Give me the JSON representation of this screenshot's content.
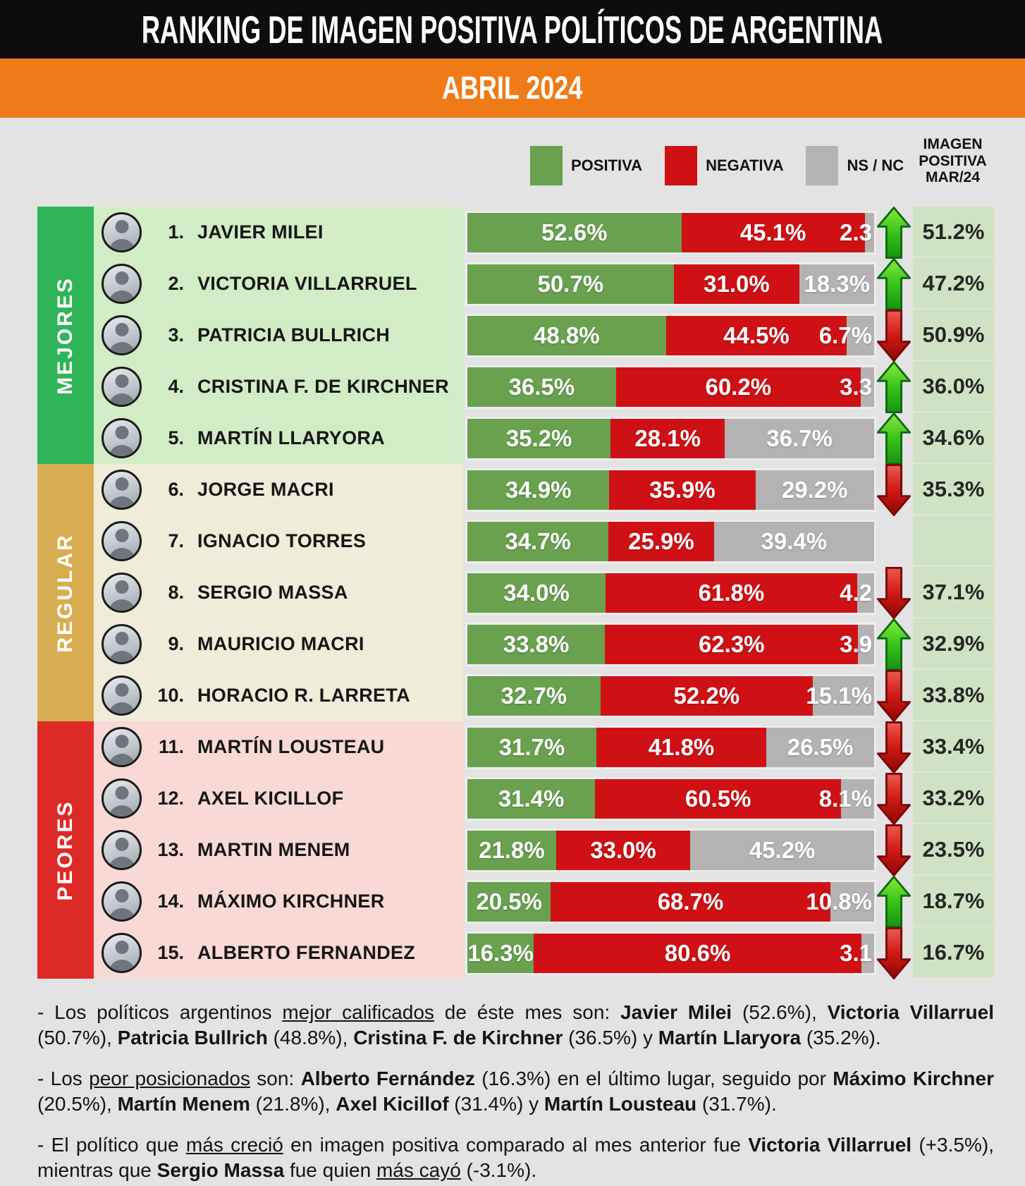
{
  "header": {
    "title": "RANKING DE IMAGEN POSITIVA POLÍTICOS DE ARGENTINA",
    "period": "ABRIL 2024"
  },
  "legend": {
    "items": [
      {
        "key": "positiva",
        "label": "POSITIVA",
        "color": "#69a14e"
      },
      {
        "key": "negativa",
        "label": "NEGATIVA",
        "color": "#cf1115"
      },
      {
        "key": "nsnc",
        "label": "NS / NC",
        "color": "#b4b2b2"
      }
    ]
  },
  "prev_header": {
    "lines": [
      "IMAGEN",
      "POSITIVA",
      "MAR/24"
    ]
  },
  "colors": {
    "page_bg": "#e3e3e3",
    "header_bg": "#0d0d0d",
    "period_bg": "#ee7b18",
    "positiva": "#69a14e",
    "negativa": "#cf1115",
    "nsnc": "#b4b2b2",
    "prev_bg": "#cfe3c4",
    "arrow_up": "#37c319",
    "arrow_down": "#cf1a14"
  },
  "sections": [
    {
      "label": "MEJORES",
      "sidebar_color": "#2fb457",
      "row_bg": "#d2ecc6",
      "from": 0,
      "to": 4
    },
    {
      "label": "REGULAR",
      "sidebar_color": "#d8ad52",
      "row_bg": "#efecd9",
      "from": 5,
      "to": 9
    },
    {
      "label": "PEORES",
      "sidebar_color": "#de2a26",
      "row_bg": "#f8d9d6",
      "from": 10,
      "to": 14
    }
  ],
  "rows": [
    {
      "rank": "1.",
      "name": "JAVIER MILEI",
      "positiva": 52.6,
      "negativa": 45.1,
      "nsnc": 2.3,
      "positiva_label": "52.6%",
      "negativa_label": "45.1%",
      "nsnc_label": "2.3",
      "trend": "up",
      "prev_label": "51.2%"
    },
    {
      "rank": "2.",
      "name": "VICTORIA VILLARRUEL",
      "positiva": 50.7,
      "negativa": 31.0,
      "nsnc": 18.3,
      "positiva_label": "50.7%",
      "negativa_label": "31.0%",
      "nsnc_label": "18.3%",
      "trend": "up",
      "prev_label": "47.2%"
    },
    {
      "rank": "3.",
      "name": "PATRICIA BULLRICH",
      "positiva": 48.8,
      "negativa": 44.5,
      "nsnc": 6.7,
      "positiva_label": "48.8%",
      "negativa_label": "44.5%",
      "nsnc_label": "6.7%",
      "trend": "down",
      "prev_label": "50.9%"
    },
    {
      "rank": "4.",
      "name": "CRISTINA F. DE KIRCHNER",
      "positiva": 36.5,
      "negativa": 60.2,
      "nsnc": 3.3,
      "positiva_label": "36.5%",
      "negativa_label": "60.2%",
      "nsnc_label": "3.3",
      "trend": "up",
      "prev_label": "36.0%"
    },
    {
      "rank": "5.",
      "name": "MARTÍN LLARYORA",
      "positiva": 35.2,
      "negativa": 28.1,
      "nsnc": 36.7,
      "positiva_label": "35.2%",
      "negativa_label": "28.1%",
      "nsnc_label": "36.7%",
      "trend": "up",
      "prev_label": "34.6%"
    },
    {
      "rank": "6.",
      "name": "JORGE MACRI",
      "positiva": 34.9,
      "negativa": 35.9,
      "nsnc": 29.2,
      "positiva_label": "34.9%",
      "negativa_label": "35.9%",
      "nsnc_label": "29.2%",
      "trend": "down",
      "prev_label": "35.3%"
    },
    {
      "rank": "7.",
      "name": "IGNACIO TORRES",
      "positiva": 34.7,
      "negativa": 25.9,
      "nsnc": 39.4,
      "positiva_label": "34.7%",
      "negativa_label": "25.9%",
      "nsnc_label": "39.4%",
      "trend": "none",
      "prev_label": ""
    },
    {
      "rank": "8.",
      "name": "SERGIO MASSA",
      "positiva": 34.0,
      "negativa": 61.8,
      "nsnc": 4.2,
      "positiva_label": "34.0%",
      "negativa_label": "61.8%",
      "nsnc_label": "4.2",
      "trend": "down",
      "prev_label": "37.1%"
    },
    {
      "rank": "9.",
      "name": "MAURICIO MACRI",
      "positiva": 33.8,
      "negativa": 62.3,
      "nsnc": 3.9,
      "positiva_label": "33.8%",
      "negativa_label": "62.3%",
      "nsnc_label": "3.9",
      "trend": "up",
      "prev_label": "32.9%"
    },
    {
      "rank": "10.",
      "name": "HORACIO R. LARRETA",
      "positiva": 32.7,
      "negativa": 52.2,
      "nsnc": 15.1,
      "positiva_label": "32.7%",
      "negativa_label": "52.2%",
      "nsnc_label": "15.1%",
      "trend": "down",
      "prev_label": "33.8%"
    },
    {
      "rank": "11.",
      "name": "MARTÍN LOUSTEAU",
      "positiva": 31.7,
      "negativa": 41.8,
      "nsnc": 26.5,
      "positiva_label": "31.7%",
      "negativa_label": "41.8%",
      "nsnc_label": "26.5%",
      "trend": "down",
      "prev_label": "33.4%"
    },
    {
      "rank": "12.",
      "name": "AXEL KICILLOF",
      "positiva": 31.4,
      "negativa": 60.5,
      "nsnc": 8.1,
      "positiva_label": "31.4%",
      "negativa_label": "60.5%",
      "nsnc_label": "8.1%",
      "trend": "down",
      "prev_label": "33.2%"
    },
    {
      "rank": "13.",
      "name": "MARTIN MENEM",
      "positiva": 21.8,
      "negativa": 33.0,
      "nsnc": 45.2,
      "positiva_label": "21.8%",
      "negativa_label": "33.0%",
      "nsnc_label": "45.2%",
      "trend": "down",
      "prev_label": "23.5%"
    },
    {
      "rank": "14.",
      "name": "MÁXIMO KIRCHNER",
      "positiva": 20.5,
      "negativa": 68.7,
      "nsnc": 10.8,
      "positiva_label": "20.5%",
      "negativa_label": "68.7%",
      "nsnc_label": "10.8%",
      "trend": "up",
      "prev_label": "18.7%"
    },
    {
      "rank": "15.",
      "name": "ALBERTO FERNANDEZ",
      "positiva": 16.3,
      "negativa": 80.6,
      "nsnc": 3.1,
      "positiva_label": "16.3%",
      "negativa_label": "80.6%",
      "nsnc_label": "3.1",
      "trend": "down",
      "prev_label": "16.7%"
    }
  ],
  "footer": {
    "paragraphs": [
      [
        {
          "t": "- Los políticos argentinos "
        },
        {
          "t": "mejor calificados",
          "u": 1
        },
        {
          "t": " de éste mes son: "
        },
        {
          "t": "Javier Milei",
          "b": 1
        },
        {
          "t": " (52.6%), "
        },
        {
          "t": "Victoria Villarruel",
          "b": 1
        },
        {
          "t": " (50.7%), "
        },
        {
          "t": "Patricia Bullrich",
          "b": 1
        },
        {
          "t": " (48.8%), "
        },
        {
          "t": "Cristina F. de Kirchner",
          "b": 1
        },
        {
          "t": " (36.5%) y "
        },
        {
          "t": "Martín Llaryora",
          "b": 1
        },
        {
          "t": " (35.2%)."
        }
      ],
      [
        {
          "t": "- Los "
        },
        {
          "t": "peor posicionados",
          "u": 1
        },
        {
          "t": " son:  "
        },
        {
          "t": "Alberto Fernández",
          "b": 1
        },
        {
          "t": " (16.3%) en el último lugar, seguido por "
        },
        {
          "t": "Máximo Kirchner",
          "b": 1
        },
        {
          "t": " (20.5%), "
        },
        {
          "t": "Martín Menem",
          "b": 1
        },
        {
          "t": " (21.8%), "
        },
        {
          "t": "Axel Kicillof",
          "b": 1
        },
        {
          "t": " (31.4%) y "
        },
        {
          "t": "Martín Lousteau",
          "b": 1
        },
        {
          "t": " (31.7%)."
        }
      ],
      [
        {
          "t": "- El político que "
        },
        {
          "t": "más creció",
          "u": 1
        },
        {
          "t": " en imagen positiva comparado al mes anterior fue  "
        },
        {
          "t": "Victoria Villarruel",
          "b": 1
        },
        {
          "t": " (+3.5%), mientras que "
        },
        {
          "t": "Sergio Massa",
          "b": 1
        },
        {
          "t": " fue quien "
        },
        {
          "t": "más cayó",
          "u": 1
        },
        {
          "t": " (-3.1%)."
        }
      ]
    ]
  },
  "chart_data": {
    "type": "bar",
    "stacked": true,
    "orientation": "horizontal",
    "title": "RANKING DE IMAGEN POSITIVA POLÍTICOS DE ARGENTINA",
    "subtitle": "ABRIL 2024",
    "categories": [
      "JAVIER MILEI",
      "VICTORIA VILLARRUEL",
      "PATRICIA BULLRICH",
      "CRISTINA F. DE KIRCHNER",
      "MARTÍN LLARYORA",
      "JORGE MACRI",
      "IGNACIO TORRES",
      "SERGIO MASSA",
      "MAURICIO MACRI",
      "HORACIO R. LARRETA",
      "MARTÍN LOUSTEAU",
      "AXEL KICILLOF",
      "MARTIN MENEM",
      "MÁXIMO KIRCHNER",
      "ALBERTO FERNANDEZ"
    ],
    "series": [
      {
        "name": "POSITIVA",
        "color": "#69a14e",
        "values": [
          52.6,
          50.7,
          48.8,
          36.5,
          35.2,
          34.9,
          34.7,
          34.0,
          33.8,
          32.7,
          31.7,
          31.4,
          21.8,
          20.5,
          16.3
        ]
      },
      {
        "name": "NEGATIVA",
        "color": "#cf1115",
        "values": [
          45.1,
          31.0,
          44.5,
          60.2,
          28.1,
          35.9,
          25.9,
          61.8,
          62.3,
          52.2,
          41.8,
          60.5,
          33.0,
          68.7,
          80.6
        ]
      },
      {
        "name": "NS / NC",
        "color": "#b4b2b2",
        "values": [
          2.3,
          18.3,
          6.7,
          3.3,
          36.7,
          29.2,
          39.4,
          4.2,
          3.9,
          15.1,
          26.5,
          8.1,
          45.2,
          10.8,
          3.1
        ]
      }
    ],
    "prev_month": {
      "label": "IMAGEN POSITIVA MAR/24",
      "values": [
        51.2,
        47.2,
        50.9,
        36.0,
        34.6,
        35.3,
        null,
        37.1,
        32.9,
        33.8,
        33.4,
        33.2,
        23.5,
        18.7,
        16.7
      ]
    },
    "trend_vs_prev": [
      "up",
      "up",
      "down",
      "up",
      "up",
      "down",
      null,
      "down",
      "up",
      "down",
      "down",
      "down",
      "down",
      "up",
      "down"
    ],
    "groups": [
      {
        "label": "MEJORES",
        "rows": [
          1,
          5
        ]
      },
      {
        "label": "REGULAR",
        "rows": [
          6,
          10
        ]
      },
      {
        "label": "PEORES",
        "rows": [
          11,
          15
        ]
      }
    ],
    "xlim": [
      0,
      100
    ],
    "legend_position": "top",
    "grid": false
  }
}
